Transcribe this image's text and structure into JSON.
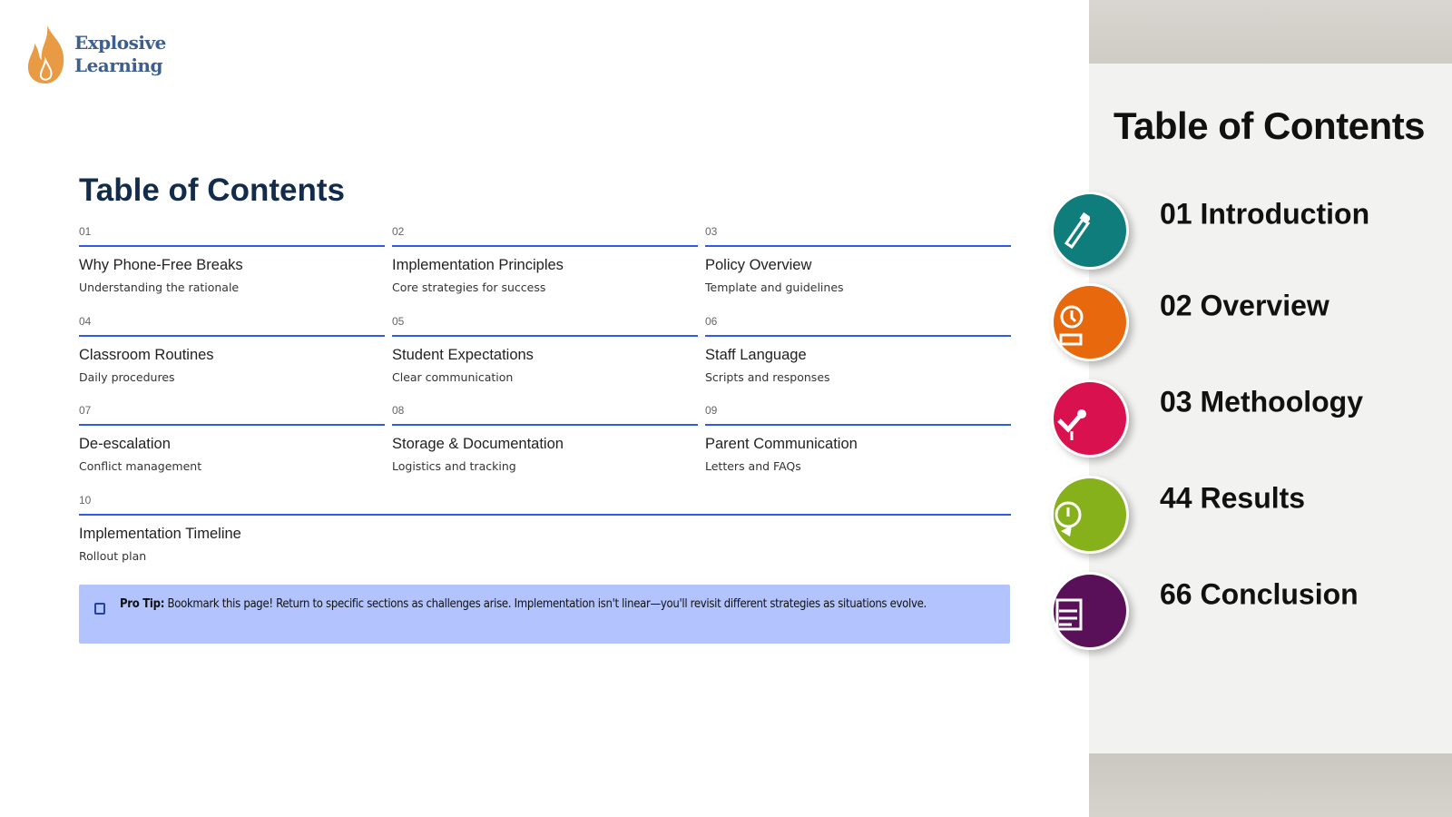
{
  "logo": {
    "line1": "Explosive",
    "line2": "Learning",
    "color": "#e99a44"
  },
  "page_title": "Table of Contents",
  "sections": [
    {
      "num": "01",
      "title": "Why Phone-Free Breaks",
      "subtitle": "Understanding the rationale"
    },
    {
      "num": "02",
      "title": "Implementation  Principles",
      "subtitle": "Core strategies for success"
    },
    {
      "num": "03",
      "title": "Policy Overview",
      "subtitle": "Template and guidelines"
    },
    {
      "num": "04",
      "title": "Classroom Routines",
      "subtitle": "Daily procedures"
    },
    {
      "num": "05",
      "title": "Student  Expectations",
      "subtitle": "Clear communication"
    },
    {
      "num": "06",
      "title": "Staff Language",
      "subtitle": "Scripts and responses"
    },
    {
      "num": "07",
      "title": "De-escalation",
      "subtitle": "Conflict management"
    },
    {
      "num": "08",
      "title": "Storage & Documentation",
      "subtitle": "Logistics and tracking"
    },
    {
      "num": "09",
      "title": "Parent Communication",
      "subtitle": "Letters and FAQs"
    },
    {
      "num": "10",
      "title": "Implementation  Timeline",
      "subtitle": "Rollout plan"
    }
  ],
  "tip": {
    "label": "Pro Tip:",
    "text": " Bookmark this page! Return to specific sections as challenges arise. Implementation isn't linear—you'll revisit different strategies as situations evolve.",
    "icon": "note-icon"
  },
  "image_panel": {
    "title": "Table of Contents",
    "items": [
      {
        "label": "01 Introduction",
        "color": "#0f7d7b",
        "icon": "pencil-icon"
      },
      {
        "label": "02 Overview",
        "color": "#e8680e",
        "icon": "clock-person-icon"
      },
      {
        "label": "03 Methoology",
        "color": "#d9114f",
        "icon": "chart-check-icon"
      },
      {
        "label": "44 Results",
        "color": "#86b11a",
        "icon": "timer-icon"
      },
      {
        "label": "66 Conclusion",
        "color": "#5a1058",
        "icon": "clipboard-icon"
      }
    ]
  },
  "accent": "#2f5bea"
}
